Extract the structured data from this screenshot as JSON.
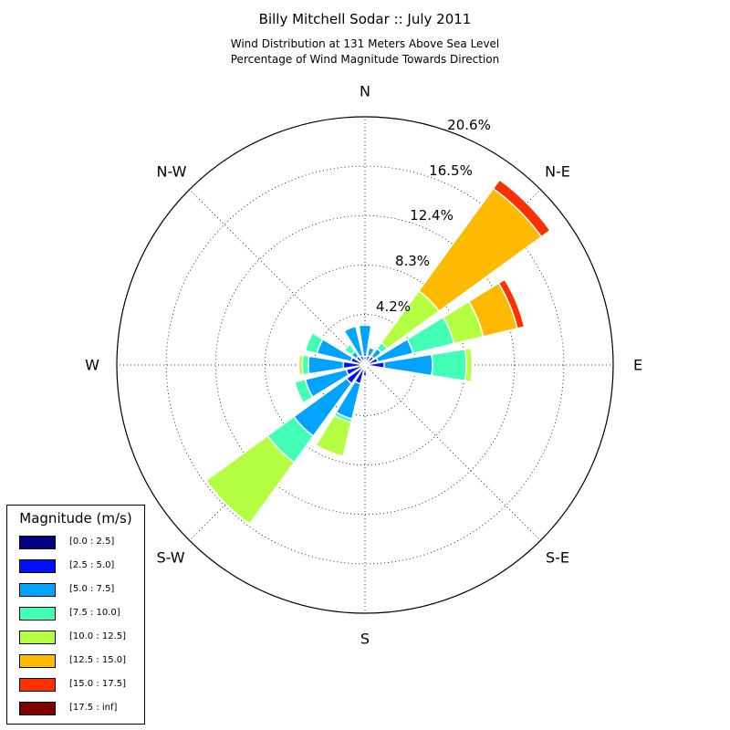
{
  "header": {
    "title": "Billy Mitchell Sodar :: July 2011",
    "subtitle_line1": "Wind Distribution at 131 Meters Above Sea Level",
    "subtitle_line2": "Percentage of Wind Magnitude Towards Direction"
  },
  "legend": {
    "title": "Magnitude (m/s)",
    "items": [
      {
        "label": "[0.0 : 2.5]",
        "color": "#000080"
      },
      {
        "label": "[2.5 : 5.0]",
        "color": "#0010ff"
      },
      {
        "label": "[5.0 : 7.5]",
        "color": "#00a4ff"
      },
      {
        "label": "[7.5 : 10.0]",
        "color": "#41ffb4"
      },
      {
        "label": "[10.0 : 12.5]",
        "color": "#b4ff41"
      },
      {
        "label": "[12.5 : 15.0]",
        "color": "#ffb900"
      },
      {
        "label": "[15.0 : 17.5]",
        "color": "#ff3000"
      },
      {
        "label": "[17.5 : inf]",
        "color": "#800000"
      }
    ]
  },
  "chart_data": {
    "type": "windrose",
    "title": "Billy Mitchell Sodar :: July 2011",
    "subtitle": "Wind Distribution at 131 Meters Above Sea Level / Percentage of Wind Magnitude Towards Direction",
    "direction_labels": [
      "N",
      "N-E",
      "E",
      "S-E",
      "S",
      "S-W",
      "W",
      "N-W"
    ],
    "radial_tick_labels": [
      "4.2%",
      "8.3%",
      "12.4%",
      "16.5%",
      "20.6%"
    ],
    "radial_ticks": [
      4.2,
      8.3,
      12.4,
      16.5,
      20.6
    ],
    "rmax": 20.6,
    "grid": true,
    "legend_position": "lower-left",
    "bins": [
      "[0.0 : 2.5]",
      "[2.5 : 5.0]",
      "[5.0 : 7.5]",
      "[7.5 : 10.0]",
      "[10.0 : 12.5]",
      "[12.5 : 15.0]",
      "[15.0 : 17.5]",
      "[17.5 : inf]"
    ],
    "sector_width_deg": 18,
    "sectors": [
      {
        "direction_deg": 0,
        "values": [
          0.2,
          0.5,
          2.6,
          0.0,
          0.0,
          0.0,
          0.0,
          0.0
        ]
      },
      {
        "direction_deg": 22.5,
        "values": [
          0.3,
          0.5,
          0.7,
          0.0,
          0.0,
          0.0,
          0.0,
          0.0
        ]
      },
      {
        "direction_deg": 45,
        "values": [
          0.3,
          0.6,
          0.8,
          0.6,
          5.3,
          10.5,
          0.9,
          0.0
        ]
      },
      {
        "direction_deg": 67.5,
        "values": [
          0.3,
          0.8,
          3.0,
          3.5,
          2.5,
          2.9,
          0.6,
          0.0
        ]
      },
      {
        "direction_deg": 90,
        "values": [
          0.3,
          1.3,
          4.0,
          2.8,
          0.5,
          0.0,
          0.0,
          0.0
        ]
      },
      {
        "direction_deg": 157.5,
        "values": [
          0.1,
          0.2,
          0.0,
          0.0,
          0.0,
          0.0,
          0.0,
          0.0
        ]
      },
      {
        "direction_deg": 180,
        "values": [
          0.3,
          0.6,
          0.0,
          0.0,
          0.0,
          0.0,
          0.0,
          0.0
        ]
      },
      {
        "direction_deg": 202.5,
        "values": [
          0.3,
          1.3,
          3.0,
          0.3,
          2.9,
          0.0,
          0.0,
          0.0
        ]
      },
      {
        "direction_deg": 225,
        "values": [
          0.3,
          1.6,
          5.4,
          2.7,
          6.3,
          0.0,
          0.0,
          0.0
        ]
      },
      {
        "direction_deg": 247.5,
        "values": [
          0.3,
          1.3,
          3.5,
          0.9,
          0.0,
          0.0,
          0.0,
          0.0
        ]
      },
      {
        "direction_deg": 270,
        "values": [
          0.3,
          1.5,
          2.9,
          0.5,
          0.3,
          0.0,
          0.0,
          0.0
        ]
      },
      {
        "direction_deg": 292.5,
        "values": [
          0.3,
          0.9,
          2.9,
          1.0,
          0.0,
          0.0,
          0.0,
          0.0
        ]
      },
      {
        "direction_deg": 315,
        "values": [
          0.3,
          0.6,
          0.5,
          0.7,
          0.0,
          0.0,
          0.0,
          0.0
        ]
      },
      {
        "direction_deg": 337.5,
        "values": [
          0.3,
          0.5,
          2.5,
          0.0,
          0.0,
          0.0,
          0.0,
          0.0
        ]
      }
    ]
  }
}
